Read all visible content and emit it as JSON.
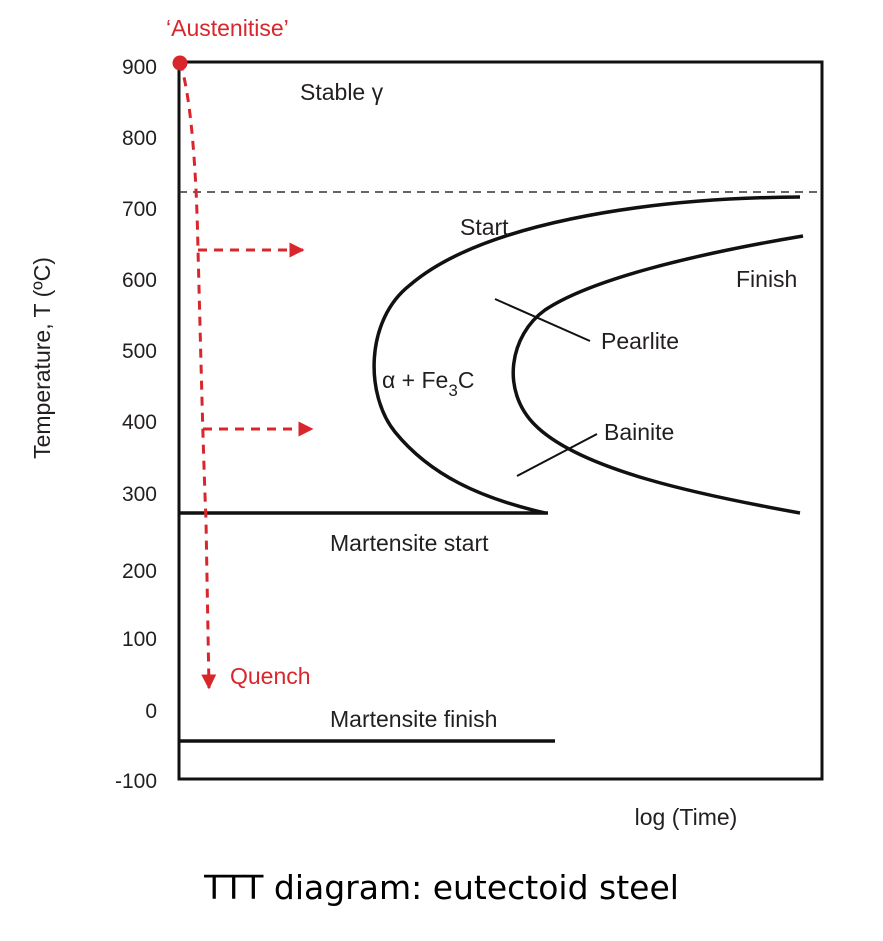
{
  "diagram": {
    "y_axis": {
      "label": "Temperature, T  (ºC)",
      "ticks": [
        "900",
        "800",
        "700",
        "600",
        "500",
        "400",
        "300",
        "200",
        "100",
        "0",
        "-100"
      ]
    },
    "x_axis": {
      "label": "log (Time)"
    },
    "labels": {
      "austenitise": "‘Austenitise’",
      "stable": "Stable γ",
      "start": "Start",
      "finish": "Finish",
      "pearlite": "Pearlite",
      "bainite": "Bainite",
      "alpha_fe3c": {
        "alpha": "α + Fe",
        "sub": "3",
        "c": "C"
      },
      "martensite_start": "Martensite start",
      "martensite_finish": "Martensite finish",
      "quench": "Quench"
    },
    "caption": "TTT diagram: eutectoid steel",
    "colors": {
      "line": "#111111",
      "path": "#d9262c"
    }
  }
}
